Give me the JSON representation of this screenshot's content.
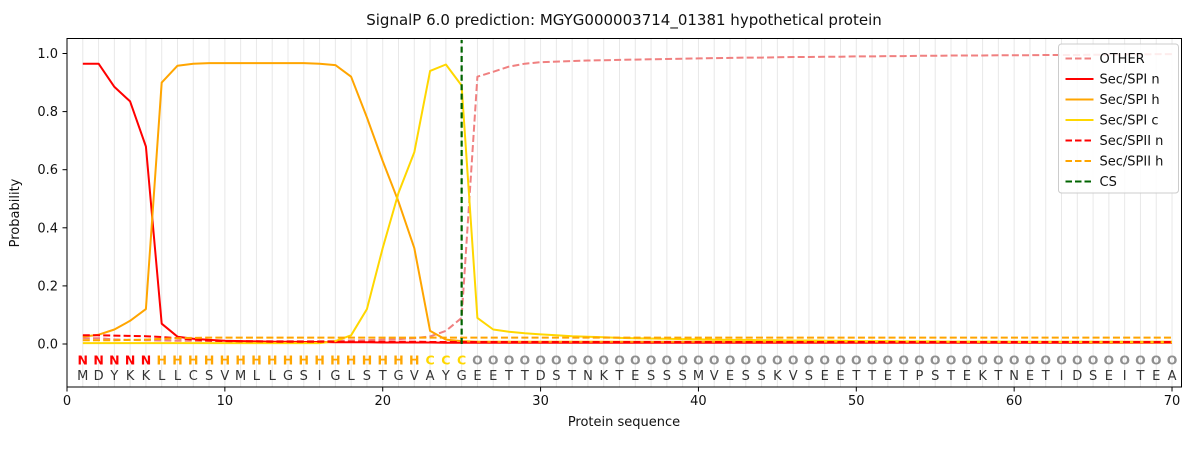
{
  "title": "SignalP 6.0 prediction: MGYG000003714_01381 hypothetical protein",
  "chart_data": {
    "type": "line",
    "title": "SignalP 6.0 prediction: MGYG000003714_01381 hypothetical protein",
    "xlabel": "Protein sequence",
    "ylabel": "Probability",
    "x_ticks": [
      "0",
      "10",
      "20",
      "30",
      "40",
      "50",
      "60",
      "70"
    ],
    "y_ticks": [
      "0.0",
      "0.2",
      "0.4",
      "0.6",
      "0.8",
      "1.0"
    ],
    "xlim": [
      0,
      70.6
    ],
    "ylim": [
      -0.15,
      1.05
    ],
    "grid": "light vertical gridline at every residue position",
    "legend_position": "upper right",
    "x_positions_are": "residue index 1-70",
    "series": [
      {
        "name": "OTHER",
        "color": "#f08080",
        "style": "dashed",
        "values": [
          0.02,
          0.02,
          0.016,
          0.014,
          0.013,
          0.012,
          0.011,
          0.011,
          0.01,
          0.01,
          0.01,
          0.01,
          0.01,
          0.01,
          0.01,
          0.01,
          0.011,
          0.012,
          0.013,
          0.015,
          0.017,
          0.02,
          0.026,
          0.045,
          0.09,
          0.92,
          0.937,
          0.955,
          0.965,
          0.97,
          0.972,
          0.974,
          0.976,
          0.977,
          0.978,
          0.979,
          0.98,
          0.981,
          0.982,
          0.983,
          0.984,
          0.985,
          0.986,
          0.986,
          0.987,
          0.988,
          0.988,
          0.989,
          0.989,
          0.99,
          0.99,
          0.991,
          0.991,
          0.992,
          0.992,
          0.993,
          0.993,
          0.993,
          0.994,
          0.994,
          0.994,
          0.995,
          0.995,
          0.995,
          0.996,
          0.996,
          0.997,
          0.997,
          0.998,
          0.998
        ]
      },
      {
        "name": "Sec/SPI n",
        "color": "#ff0000",
        "style": "solid",
        "values": [
          0.965,
          0.965,
          0.885,
          0.835,
          0.68,
          0.07,
          0.025,
          0.018,
          0.014,
          0.011,
          0.01,
          0.009,
          0.008,
          0.008,
          0.007,
          0.007,
          0.006,
          0.006,
          0.006,
          0.005,
          0.005,
          0.005,
          0.005,
          0.004,
          0.004,
          0.004,
          0.004,
          0.004,
          0.004,
          0.004,
          0.004,
          0.004,
          0.004,
          0.004,
          0.004,
          0.004,
          0.004,
          0.004,
          0.004,
          0.004,
          0.004,
          0.004,
          0.004,
          0.004,
          0.004,
          0.004,
          0.004,
          0.004,
          0.004,
          0.004,
          0.004,
          0.004,
          0.004,
          0.004,
          0.004,
          0.004,
          0.004,
          0.004,
          0.004,
          0.004,
          0.004,
          0.004,
          0.004,
          0.004,
          0.004,
          0.004,
          0.004,
          0.004,
          0.004,
          0.004
        ]
      },
      {
        "name": "Sec/SPI h",
        "color": "#ffa500",
        "style": "solid",
        "values": [
          0.025,
          0.032,
          0.05,
          0.08,
          0.12,
          0.9,
          0.958,
          0.965,
          0.967,
          0.967,
          0.967,
          0.967,
          0.967,
          0.967,
          0.967,
          0.965,
          0.96,
          0.92,
          0.78,
          0.63,
          0.49,
          0.33,
          0.045,
          0.015,
          0.01,
          0.008,
          0.008,
          0.008,
          0.008,
          0.008,
          0.008,
          0.008,
          0.008,
          0.008,
          0.008,
          0.008,
          0.008,
          0.008,
          0.008,
          0.008,
          0.008,
          0.008,
          0.008,
          0.008,
          0.008,
          0.008,
          0.008,
          0.008,
          0.008,
          0.008,
          0.008,
          0.008,
          0.008,
          0.008,
          0.008,
          0.008,
          0.008,
          0.008,
          0.008,
          0.008,
          0.008,
          0.008,
          0.008,
          0.008,
          0.008,
          0.008,
          0.008,
          0.008,
          0.008,
          0.008
        ]
      },
      {
        "name": "Sec/SPI c",
        "color": "#ffd700",
        "style": "solid",
        "values": [
          0.003,
          0.003,
          0.003,
          0.003,
          0.003,
          0.003,
          0.003,
          0.003,
          0.003,
          0.003,
          0.003,
          0.003,
          0.003,
          0.003,
          0.003,
          0.003,
          0.01,
          0.03,
          0.12,
          0.33,
          0.52,
          0.66,
          0.94,
          0.962,
          0.89,
          0.09,
          0.05,
          0.042,
          0.037,
          0.033,
          0.03,
          0.027,
          0.025,
          0.023,
          0.021,
          0.02,
          0.019,
          0.018,
          0.017,
          0.016,
          0.015,
          0.014,
          0.014,
          0.013,
          0.013,
          0.012,
          0.012,
          0.011,
          0.011,
          0.01,
          0.01,
          0.01,
          0.009,
          0.009,
          0.009,
          0.008,
          0.008,
          0.008,
          0.008,
          0.007,
          0.007,
          0.007,
          0.007,
          0.007,
          0.006,
          0.006,
          0.006,
          0.006,
          0.006,
          0.006
        ]
      },
      {
        "name": "Sec/SPII n",
        "color": "#ff0000",
        "style": "dashed",
        "values": [
          0.03,
          0.03,
          0.029,
          0.028,
          0.027,
          0.024,
          0.02,
          0.015,
          0.012,
          0.01,
          0.009,
          0.009,
          0.008,
          0.008,
          0.008,
          0.008,
          0.008,
          0.008,
          0.008,
          0.008,
          0.008,
          0.008,
          0.007,
          0.007,
          0.007,
          0.007,
          0.007,
          0.007,
          0.007,
          0.007,
          0.007,
          0.007,
          0.007,
          0.007,
          0.007,
          0.007,
          0.007,
          0.007,
          0.007,
          0.007,
          0.007,
          0.007,
          0.007,
          0.007,
          0.007,
          0.007,
          0.007,
          0.007,
          0.007,
          0.007,
          0.007,
          0.007,
          0.007,
          0.007,
          0.007,
          0.007,
          0.007,
          0.007,
          0.007,
          0.007,
          0.007,
          0.007,
          0.007,
          0.007,
          0.007,
          0.007,
          0.007,
          0.007,
          0.007,
          0.007
        ]
      },
      {
        "name": "Sec/SPII h",
        "color": "#ffa500",
        "style": "dashed",
        "values": [
          0.013,
          0.013,
          0.013,
          0.014,
          0.015,
          0.018,
          0.02,
          0.021,
          0.022,
          0.022,
          0.022,
          0.022,
          0.022,
          0.022,
          0.022,
          0.022,
          0.022,
          0.022,
          0.022,
          0.022,
          0.022,
          0.022,
          0.022,
          0.022,
          0.022,
          0.022,
          0.022,
          0.022,
          0.022,
          0.022,
          0.022,
          0.022,
          0.022,
          0.022,
          0.022,
          0.022,
          0.022,
          0.022,
          0.022,
          0.022,
          0.022,
          0.022,
          0.022,
          0.022,
          0.022,
          0.022,
          0.022,
          0.022,
          0.022,
          0.022,
          0.022,
          0.022,
          0.022,
          0.022,
          0.022,
          0.022,
          0.022,
          0.022,
          0.022,
          0.022,
          0.022,
          0.022,
          0.022,
          0.022,
          0.022,
          0.022,
          0.022,
          0.022,
          0.022,
          0.022
        ]
      },
      {
        "name": "CS",
        "color": "#006400",
        "style": "dashed",
        "vertical_line_at": 25
      }
    ],
    "sequence": "MDYKKLLCSVMLLGSIGLSTGVAYGEETTDSTNKTESSSMVESSKVSEETTETPSTEKTNETIDSEITEA",
    "region_labels": "NNNNNHHHHHHHHHHHHHHHHHCCCOOOOOOOOOOOOOOOOOOOOOOOOOOOOOOOOOOOOOOOOOOOOO",
    "region_label_colors": {
      "N": "#ff0000",
      "H": "#ffa500",
      "C": "#ffd700",
      "O": "#8f8f8f"
    },
    "sequence_color": "#333333",
    "accent_colors": {
      "axis": "#000000",
      "grid": "#e8e8e8",
      "cs_line": "#006400"
    }
  }
}
